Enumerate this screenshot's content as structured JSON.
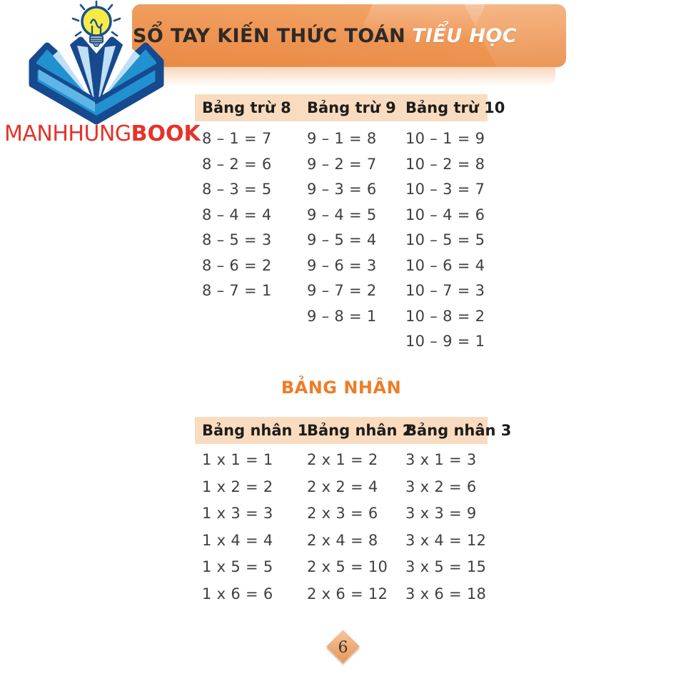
{
  "header": {
    "title_main": "SỔ TAY KIẾN THỨC TOÁN",
    "title_accent": "TIỂU HỌC"
  },
  "logo": {
    "brand_light": "MANHHUNG",
    "brand_bold": "BOOK",
    "icons": [
      "lightbulb-icon",
      "open-book-icon"
    ]
  },
  "subtraction_table": {
    "columns": [
      {
        "header": "Bảng trừ 8",
        "rows": [
          "8 – 1 = 7",
          "8 – 2 = 6",
          "8 – 3 = 5",
          "8 – 4 = 4",
          "8 – 5 = 3",
          "8 – 6 = 2",
          "8 – 7 = 1"
        ]
      },
      {
        "header": "Bảng trừ 9",
        "rows": [
          "9 – 1 = 8",
          "9 – 2 = 7",
          "9 – 3 = 6",
          "9 – 4 = 5",
          "9 – 5 = 4",
          "9 – 6 = 3",
          "9 – 7 = 2",
          "9 – 8 = 1"
        ]
      },
      {
        "header": "Bảng trừ 10",
        "rows": [
          "10 – 1 = 9",
          "10 – 2 = 8",
          "10 – 3 = 7",
          "10 – 4 = 6",
          "10 – 5 = 5",
          "10 – 6 = 4",
          "10 – 7 = 3",
          "10 – 8 = 2",
          "10 – 9 = 1"
        ]
      }
    ]
  },
  "section_heading": "BẢNG NHÂN",
  "multiplication_table": {
    "columns": [
      {
        "header": "Bảng nhân 1",
        "rows": [
          "1 x 1 = 1",
          "1 x 2 = 2",
          "1 x 3 = 3",
          "1 x 4 = 4",
          "1 x 5 = 5",
          "1 x 6 = 6"
        ]
      },
      {
        "header": "Bảng nhân 2",
        "rows": [
          "2 x 1 = 2",
          "2 x 2 = 4",
          "2 x 3 = 6",
          "2 x 4 = 8",
          "2 x 5 = 10",
          "2 x 6 = 12"
        ]
      },
      {
        "header": "Bảng nhân 3",
        "rows": [
          "3 x 1 = 3",
          "3 x 2 = 6",
          "3 x 3 = 9",
          "3 x 4 = 12",
          "3 x 5 = 15",
          "3 x 6 = 18"
        ]
      }
    ]
  },
  "page_number": "6",
  "colors": {
    "banner_orange": "#EC9150",
    "banner_orange_light": "#F3AB74",
    "table_header_peach": "#F9DCC0",
    "section_heading_orange": "#EE7D27",
    "brand_red": "#E5332A",
    "book_blue": "#2191D0",
    "book_navy": "#17498F",
    "book_page_light_blue": "#BFE0F4",
    "bulb_yellow": "#F6EC45",
    "equation_text": "#3F3F3F",
    "title_text": "#2E2A27"
  }
}
